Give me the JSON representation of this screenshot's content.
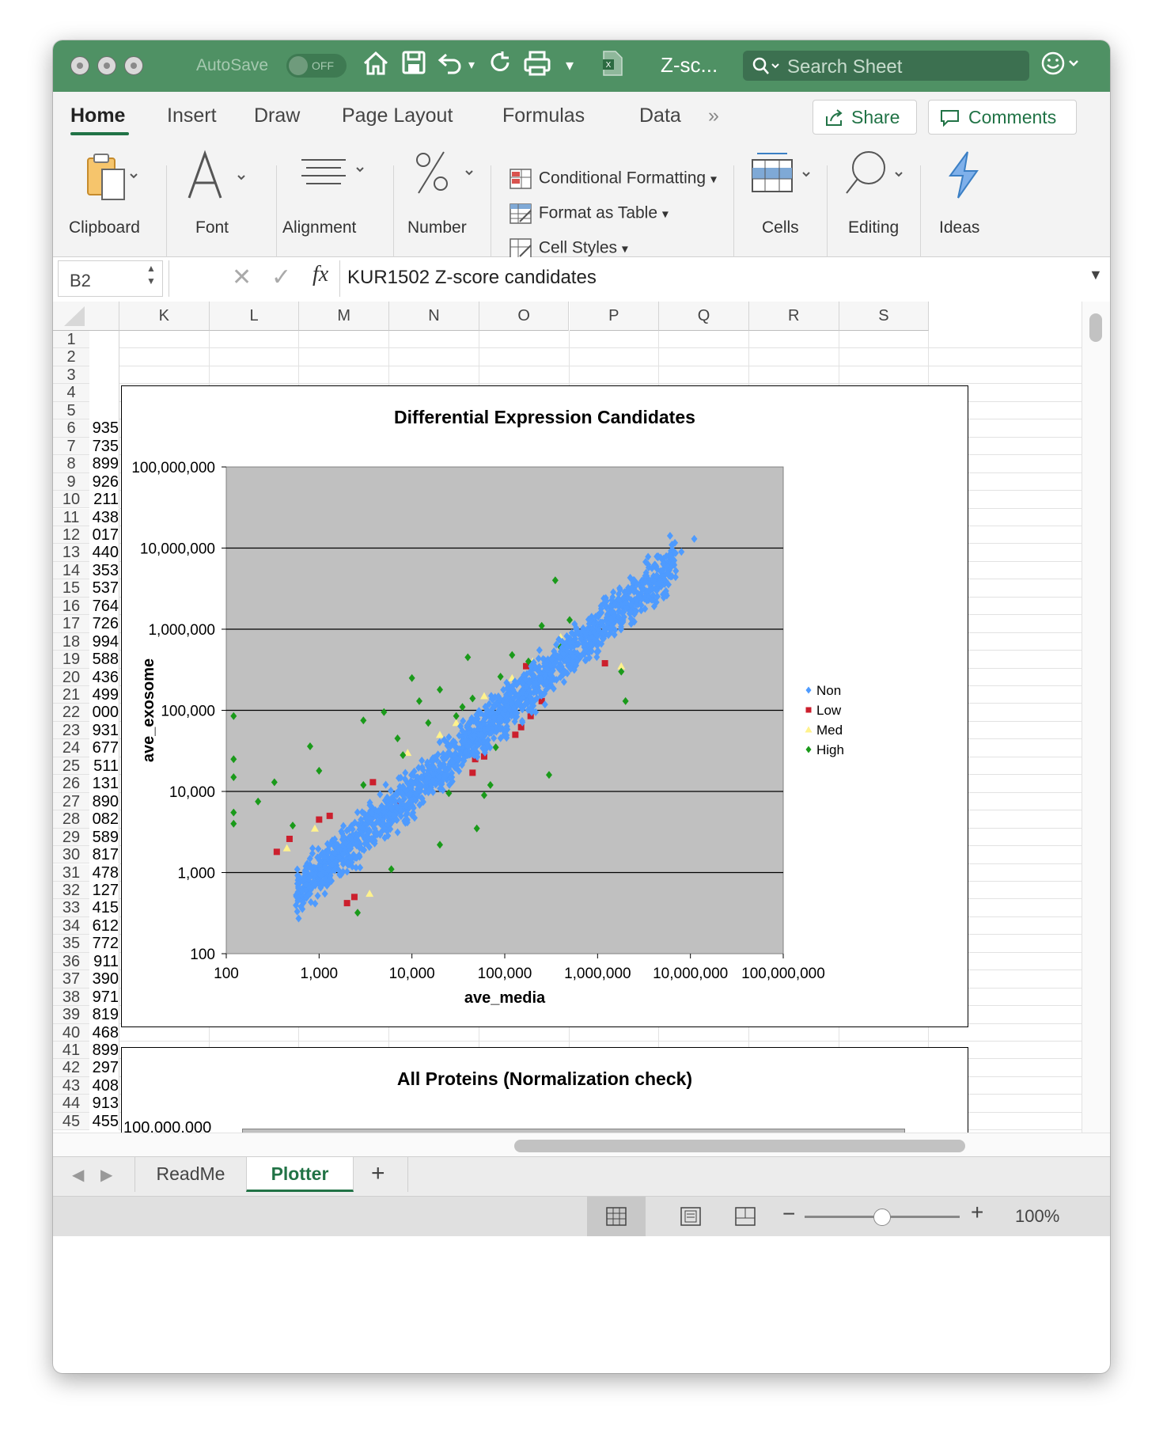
{
  "titlebar": {
    "autosave_label": "AutoSave",
    "autosave_state": "OFF",
    "doc_title": "Z-sc...",
    "search_placeholder": "Search Sheet"
  },
  "ribbon_tabs": [
    "Home",
    "Insert",
    "Draw",
    "Page Layout",
    "Formulas",
    "Data"
  ],
  "ribbon_actions": {
    "share": "Share",
    "comments": "Comments"
  },
  "ribbon": {
    "clipboard": "Clipboard",
    "font": "Font",
    "alignment": "Alignment",
    "number": "Number",
    "conditional_formatting": "Conditional Formatting",
    "format_as_table": "Format as Table",
    "cell_styles": "Cell Styles",
    "cells": "Cells",
    "editing": "Editing",
    "ideas": "Ideas"
  },
  "formula_bar": {
    "name_box": "B2",
    "content": "KUR1502 Z-score candidates"
  },
  "columns": [
    "K",
    "L",
    "M",
    "N",
    "O",
    "P",
    "Q",
    "R",
    "S"
  ],
  "rows": [
    1,
    2,
    3,
    4,
    5,
    6,
    7,
    8,
    9,
    10,
    11,
    12,
    13,
    14,
    15,
    16,
    17,
    18,
    19,
    20,
    21,
    22,
    23,
    24,
    25,
    26,
    27,
    28,
    29,
    30,
    31,
    32,
    33,
    34,
    35,
    36,
    37,
    38,
    39,
    40,
    41,
    42,
    43,
    44,
    45
  ],
  "column_j_values": [
    "",
    "",
    "",
    "",
    "",
    "935",
    "735",
    "899",
    "926",
    "211",
    "438",
    "017",
    "440",
    "353",
    "537",
    "764",
    "726",
    "994",
    "588",
    "436",
    "499",
    "000",
    "931",
    "677",
    "511",
    "131",
    "890",
    "082",
    "589",
    "817",
    "478",
    "127",
    "415",
    "612",
    "772",
    "911",
    "390",
    "971",
    "819",
    "468",
    "899",
    "297",
    "408",
    "913",
    "455"
  ],
  "chart_data": [
    {
      "type": "scatter",
      "title": "Differential Expression Candidates",
      "xlabel": "ave_media",
      "ylabel": "ave_exosome",
      "x_scale": "log",
      "y_scale": "log",
      "xlim": [
        100,
        100000000
      ],
      "ylim": [
        100,
        100000000
      ],
      "x_ticks": [
        "100",
        "1,000",
        "10,000",
        "100,000",
        "1,000,000",
        "10,000,000",
        "100,000,000"
      ],
      "y_ticks": [
        "100",
        "1,000",
        "10,000",
        "100,000",
        "1,000,000",
        "10,000,000",
        "100,000,000"
      ],
      "grid": "horizontal",
      "legend_position": "right",
      "plot_background": "#c0c0c0",
      "series": [
        {
          "name": "Non",
          "color": "#4e9bff",
          "marker": "diamond",
          "points": [
            [
              700,
              650
            ],
            [
              800,
              900
            ],
            [
              1000,
              1100
            ],
            [
              1200,
              1600
            ],
            [
              1500,
              2000
            ],
            [
              2000,
              1800
            ],
            [
              2500,
              3000
            ],
            [
              3000,
              3500
            ],
            [
              4000,
              5000
            ],
            [
              5000,
              6000
            ],
            [
              6000,
              5500
            ],
            [
              8000,
              9000
            ],
            [
              10000,
              12000
            ],
            [
              12000,
              10000
            ],
            [
              15000,
              18000
            ],
            [
              20000,
              22000
            ],
            [
              25000,
              20000
            ],
            [
              30000,
              35000
            ],
            [
              40000,
              45000
            ],
            [
              50000,
              50000
            ],
            [
              60000,
              70000
            ],
            [
              80000,
              90000
            ],
            [
              100000,
              110000
            ],
            [
              120000,
              100000
            ],
            [
              150000,
              160000
            ],
            [
              200000,
              220000
            ],
            [
              250000,
              230000
            ],
            [
              300000,
              320000
            ],
            [
              400000,
              450000
            ],
            [
              500000,
              480000
            ],
            [
              600000,
              650000
            ],
            [
              800000,
              900000
            ],
            [
              1000000,
              1100000
            ],
            [
              1200000,
              1000000
            ],
            [
              1500000,
              1600000
            ],
            [
              2000000,
              2200000
            ],
            [
              2500000,
              2300000
            ],
            [
              3000000,
              3200000
            ],
            [
              4000000,
              4500000
            ],
            [
              5000000,
              5000000
            ],
            [
              6000000,
              7000000
            ],
            [
              8000000,
              9000000
            ],
            [
              11000000,
              13000000
            ]
          ]
        },
        {
          "name": "Low",
          "color": "#cc1f2d",
          "marker": "square",
          "points": [
            [
              350,
              1800
            ],
            [
              480,
              2600
            ],
            [
              1000,
              4500
            ],
            [
              1300,
              5000
            ],
            [
              2000,
              420
            ],
            [
              2400,
              500
            ],
            [
              3800,
              13000
            ],
            [
              7500,
              7000
            ],
            [
              9000,
              6500
            ],
            [
              45000,
              17000
            ],
            [
              48000,
              25000
            ],
            [
              60000,
              27000
            ],
            [
              130000,
              50000
            ],
            [
              150000,
              62000
            ],
            [
              190000,
              85000
            ],
            [
              250000,
              130000
            ],
            [
              1200000,
              380000
            ],
            [
              170000,
              350000
            ]
          ]
        },
        {
          "name": "Med",
          "color": "#fff28c",
          "marker": "triangle",
          "points": [
            [
              450,
              2000
            ],
            [
              900,
              3500
            ],
            [
              1800,
              2200
            ],
            [
              3500,
              550
            ],
            [
              9000,
              30000
            ],
            [
              20000,
              50000
            ],
            [
              30000,
              70000
            ],
            [
              60000,
              150000
            ],
            [
              120000,
              250000
            ],
            [
              200000,
              400000
            ],
            [
              400000,
              800000
            ],
            [
              1500000,
              2500000
            ],
            [
              1800000,
              350000
            ],
            [
              800000,
              1000000
            ]
          ]
        },
        {
          "name": "High",
          "color": "#1a9a1a",
          "marker": "diamond",
          "points": [
            [
              120,
              85000
            ],
            [
              120,
              25000
            ],
            [
              120,
              15000
            ],
            [
              120,
              5500
            ],
            [
              120,
              4000
            ],
            [
              220,
              7500
            ],
            [
              330,
              13000
            ],
            [
              520,
              3800
            ],
            [
              800,
              36000
            ],
            [
              1000,
              18000
            ],
            [
              2000,
              2200
            ],
            [
              2600,
              320
            ],
            [
              3000,
              75000
            ],
            [
              3000,
              12000
            ],
            [
              5000,
              95000
            ],
            [
              6000,
              1100
            ],
            [
              7000,
              45000
            ],
            [
              8000,
              28000
            ],
            [
              10000,
              250000
            ],
            [
              12000,
              130000
            ],
            [
              15000,
              70000
            ],
            [
              20000,
              2200
            ],
            [
              20000,
              180000
            ],
            [
              25000,
              9500
            ],
            [
              30000,
              85000
            ],
            [
              35000,
              110000
            ],
            [
              40000,
              450000
            ],
            [
              45000,
              140000
            ],
            [
              50000,
              3500
            ],
            [
              60000,
              9000
            ],
            [
              70000,
              12000
            ],
            [
              80000,
              35000
            ],
            [
              90000,
              260000
            ],
            [
              120000,
              480000
            ],
            [
              180000,
              400000
            ],
            [
              250000,
              1100000
            ],
            [
              280000,
              220000
            ],
            [
              300000,
              16000
            ],
            [
              350000,
              4000000
            ],
            [
              400000,
              600000
            ],
            [
              500000,
              1300000
            ],
            [
              1800000,
              300000
            ],
            [
              2000000,
              130000
            ]
          ]
        }
      ]
    },
    {
      "type": "scatter",
      "title": "All Proteins (Normalization check)",
      "y_ticks": [
        "100,000,000"
      ]
    }
  ],
  "sheet_tabs": [
    "ReadMe",
    "Plotter"
  ],
  "active_sheet": "Plotter",
  "status": {
    "zoom": "100%",
    "zoom_fraction": 0.5
  }
}
